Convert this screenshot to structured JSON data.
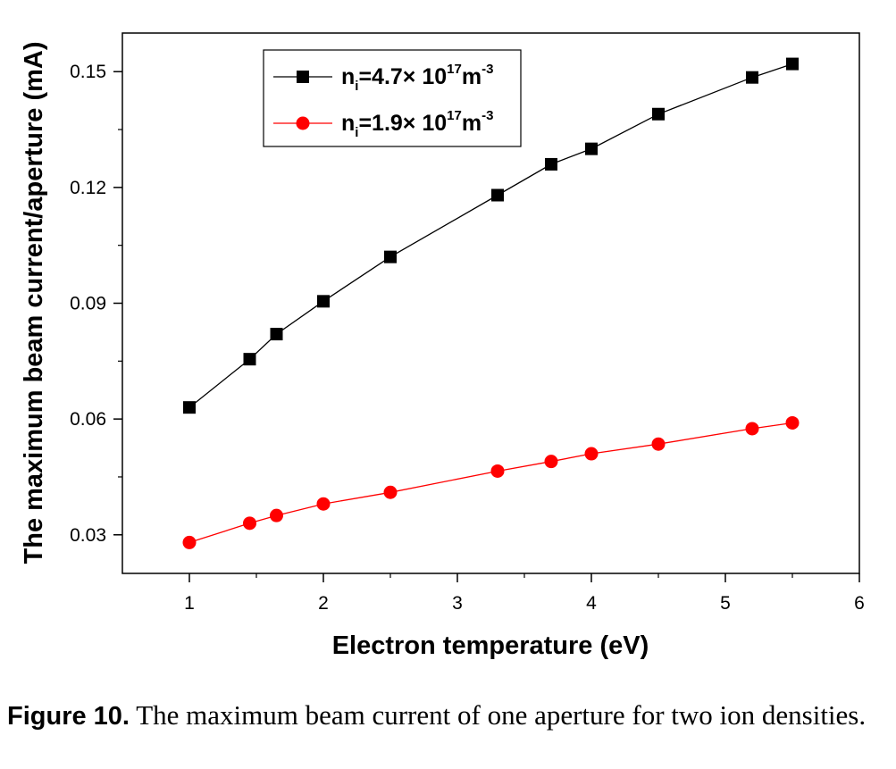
{
  "chart_data": {
    "type": "line",
    "xlabel": "Electron temperature (eV)",
    "ylabel": "The maximum beam current/aperture (mA)",
    "xlim": [
      0.5,
      6
    ],
    "ylim": [
      0.02,
      0.16
    ],
    "xticks": [
      "1",
      "2",
      "3",
      "4",
      "5",
      "6"
    ],
    "yticks": [
      "0.03",
      "0.06",
      "0.09",
      "0.12",
      "0.15"
    ],
    "legend_position": "top-left",
    "grid": false,
    "x": [
      1,
      1.45,
      1.65,
      2,
      2.5,
      3.3,
      3.7,
      4,
      4.5,
      5.2,
      5.5
    ],
    "series": [
      {
        "name_parts": {
          "n": "n",
          "i": "i",
          "mid": "=4.7× 10",
          "exp": "17",
          "unit": "m",
          "unit_exp": "-3"
        },
        "color": "#000000",
        "marker": "square",
        "values": [
          0.063,
          0.0755,
          0.082,
          0.0905,
          0.102,
          0.118,
          0.126,
          0.13,
          0.139,
          0.1485,
          0.152
        ]
      },
      {
        "name_parts": {
          "n": "n",
          "i": "i",
          "mid": "=1.9× 10",
          "exp": "17",
          "unit": "m",
          "unit_exp": "-3"
        },
        "color": "#ff0000",
        "marker": "circle",
        "values": [
          0.028,
          0.033,
          0.035,
          0.038,
          0.041,
          0.0465,
          0.049,
          0.051,
          0.0535,
          0.0575,
          0.059
        ]
      }
    ]
  },
  "caption": {
    "label": "Figure 10.",
    "text": " The maximum beam current of one aperture for two ion densities."
  }
}
